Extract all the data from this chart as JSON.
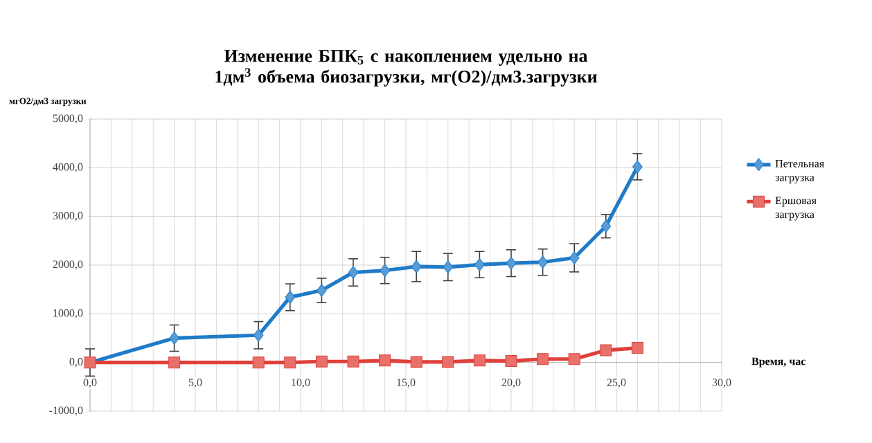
{
  "chart_data": {
    "type": "line",
    "title": "Изменение БПК$_{5}$ с накоплением удельно на 1дм$^{3}$ объема биозагрузки, мг(O2)/дм3.загрузки",
    "ylabel": "мгO2/дм3 загрузки",
    "xlabel": "Время, час",
    "x": [
      0,
      4,
      8,
      9.5,
      11,
      12.5,
      14,
      15.5,
      17,
      18.5,
      20,
      21.5,
      23,
      24.5,
      26
    ],
    "series": [
      {
        "name": "Петельная загрузка",
        "color": "#1f7bc8",
        "marker": "diamond",
        "values": [
          0,
          500,
          560,
          1340,
          1480,
          1850,
          1890,
          1970,
          1960,
          2010,
          2040,
          2060,
          2150,
          2800,
          4020
        ],
        "errors": [
          280,
          270,
          280,
          275,
          250,
          280,
          270,
          310,
          280,
          270,
          275,
          270,
          290,
          240,
          270
        ]
      },
      {
        "name": "Ершовая загрузка",
        "color": "#e0403a",
        "marker": "square",
        "values": [
          0,
          0,
          0,
          0,
          20,
          20,
          40,
          10,
          10,
          40,
          30,
          70,
          70,
          250,
          300
        ]
      }
    ],
    "xlim": [
      0,
      30
    ],
    "ylim": [
      -1000,
      5000
    ],
    "xticks": [
      {
        "value": 0,
        "label": "0,0"
      },
      {
        "value": 5,
        "label": "5,0"
      },
      {
        "value": 10,
        "label": "10,0"
      },
      {
        "value": 15,
        "label": "15,0"
      },
      {
        "value": 20,
        "label": "20,0"
      },
      {
        "value": 25,
        "label": "25,0"
      },
      {
        "value": 30,
        "label": "30,0"
      }
    ],
    "yticks": [
      {
        "value": -1000,
        "label": "-1000,0"
      },
      {
        "value": 0,
        "label": "0,0"
      },
      {
        "value": 1000,
        "label": "1000,0"
      },
      {
        "value": 2000,
        "label": "2000,0"
      },
      {
        "value": 3000,
        "label": "3000,0"
      },
      {
        "value": 4000,
        "label": "4000,0"
      },
      {
        "value": 5000,
        "label": "5000,0"
      }
    ],
    "grid": true,
    "legend": "right",
    "line_style": "solid"
  }
}
